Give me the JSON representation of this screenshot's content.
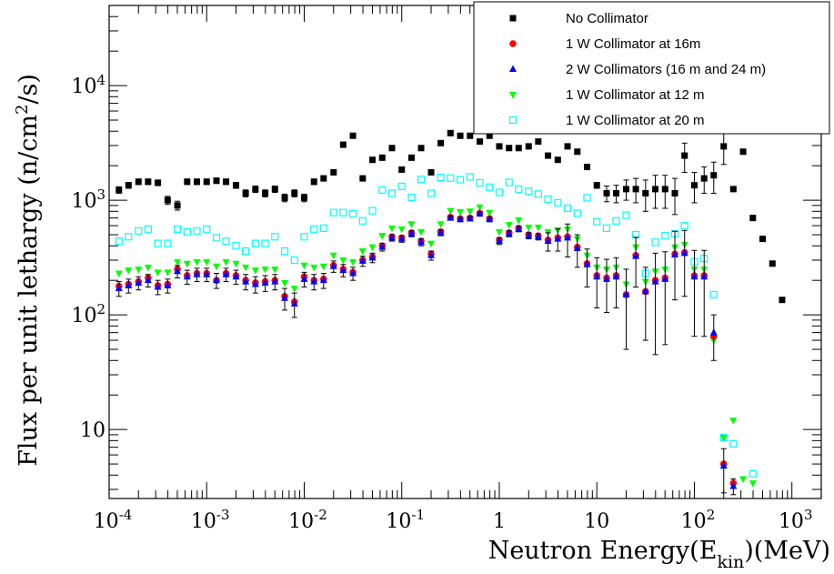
{
  "chart_data": {
    "type": "scatter",
    "xscale": "log",
    "yscale": "log",
    "xlim": [
      0.0001,
      2000
    ],
    "ylim": [
      2.5,
      50000
    ],
    "xlabel": "Neutron Energy(E_kin)(MeV)",
    "ylabel": "Flux per unit lethargy (n/cm^2/s)",
    "x_tick_labels": [
      "10^-4",
      "10^-3",
      "10^-2",
      "10^-1",
      "1",
      "10",
      "10^2",
      "10^3"
    ],
    "y_tick_labels": [
      "10",
      "10^2",
      "10^3",
      "10^4"
    ],
    "legend_position": "top-right",
    "series": [
      {
        "name": "No Collimator",
        "color": "#000000",
        "marker": "square-filled",
        "x": [
          0.000126,
          0.000158,
          0.0002,
          0.000251,
          0.000316,
          0.000398,
          0.000501,
          0.000631,
          0.000794,
          0.001,
          0.00126,
          0.00158,
          0.002,
          0.00251,
          0.00316,
          0.00398,
          0.00501,
          0.00631,
          0.00794,
          0.01,
          0.0126,
          0.0158,
          0.02,
          0.0251,
          0.0316,
          0.0398,
          0.0501,
          0.0631,
          0.0794,
          0.1,
          0.126,
          0.158,
          0.2,
          0.251,
          0.316,
          0.398,
          0.501,
          0.631,
          0.794,
          1,
          1.26,
          1.58,
          2,
          2.51,
          3.16,
          3.98,
          5.01,
          6.31,
          7.94,
          10,
          12.6,
          15.8,
          20,
          25.1,
          31.6,
          39.8,
          50.1,
          63.1,
          79.4,
          100,
          126,
          158,
          200,
          251,
          316,
          398,
          501,
          631,
          794
        ],
        "y": [
          1230,
          1350,
          1450,
          1450,
          1420,
          1000,
          900,
          1450,
          1450,
          1450,
          1480,
          1450,
          1350,
          1150,
          1250,
          1150,
          1250,
          1050,
          1150,
          1050,
          1450,
          1550,
          1750,
          3050,
          3650,
          1550,
          2250,
          2350,
          2850,
          1850,
          2350,
          2850,
          1750,
          3150,
          3850,
          3650,
          3650,
          3250,
          3650,
          2950,
          2850,
          2850,
          2950,
          3250,
          2450,
          2250,
          2950,
          2650,
          1950,
          1350,
          1150,
          1150,
          1250,
          1250,
          1150,
          1250,
          1250,
          1150,
          2450,
          1350,
          1550,
          1650,
          2950,
          1250,
          2650,
          700,
          460,
          280,
          135
        ],
        "err": [
          80,
          80,
          80,
          80,
          80,
          80,
          80,
          80,
          80,
          80,
          80,
          80,
          80,
          80,
          80,
          80,
          80,
          80,
          80,
          80,
          80,
          80,
          80,
          80,
          80,
          80,
          80,
          80,
          80,
          80,
          80,
          80,
          80,
          80,
          80,
          80,
          80,
          80,
          80,
          80,
          80,
          80,
          80,
          80,
          80,
          80,
          80,
          80,
          80,
          80,
          180,
          200,
          250,
          300,
          350,
          400,
          400,
          400,
          700,
          400,
          400,
          500,
          900,
          0,
          0,
          0,
          0,
          0,
          0
        ]
      },
      {
        "name": "1 W Collimator at 16m",
        "color": "#ff0000",
        "marker": "circle-filled",
        "x": [
          0.000126,
          0.000158,
          0.0002,
          0.000251,
          0.000316,
          0.000398,
          0.000501,
          0.000631,
          0.000794,
          0.001,
          0.00126,
          0.00158,
          0.002,
          0.00251,
          0.00316,
          0.00398,
          0.00501,
          0.00631,
          0.00794,
          0.01,
          0.0126,
          0.0158,
          0.02,
          0.0251,
          0.0316,
          0.0398,
          0.0501,
          0.0631,
          0.0794,
          0.1,
          0.126,
          0.158,
          0.2,
          0.251,
          0.316,
          0.398,
          0.501,
          0.631,
          0.794,
          1,
          1.26,
          1.58,
          2,
          2.51,
          3.16,
          3.98,
          5.01,
          6.31,
          7.94,
          10,
          12.6,
          15.8,
          20,
          25.1,
          31.6,
          39.8,
          50.1,
          63.1,
          79.4,
          100,
          126,
          158,
          200,
          251,
          316
        ],
        "y": [
          178,
          185,
          195,
          210,
          180,
          185,
          250,
          220,
          230,
          230,
          200,
          230,
          220,
          200,
          190,
          195,
          200,
          145,
          130,
          215,
          200,
          205,
          270,
          250,
          235,
          300,
          320,
          400,
          480,
          470,
          520,
          440,
          340,
          530,
          710,
          690,
          700,
          770,
          690,
          450,
          520,
          570,
          500,
          490,
          450,
          470,
          480,
          390,
          280,
          220,
          210,
          220,
          150,
          330,
          160,
          200,
          210,
          340,
          350,
          220,
          220,
          65,
          5,
          3.4,
          0
        ]
      },
      {
        "name": "2 W Collimators (16 m and 24 m)",
        "color": "#0000ff",
        "marker": "triangle-up",
        "x": [
          0.000126,
          0.000158,
          0.0002,
          0.000251,
          0.000316,
          0.000398,
          0.000501,
          0.000631,
          0.000794,
          0.001,
          0.00126,
          0.00158,
          0.002,
          0.00251,
          0.00316,
          0.00398,
          0.00501,
          0.00631,
          0.00794,
          0.01,
          0.0126,
          0.0158,
          0.02,
          0.0251,
          0.0316,
          0.0398,
          0.0501,
          0.0631,
          0.0794,
          0.1,
          0.126,
          0.158,
          0.2,
          0.251,
          0.316,
          0.398,
          0.501,
          0.631,
          0.794,
          1,
          1.26,
          1.58,
          2,
          2.51,
          3.16,
          3.98,
          5.01,
          6.31,
          7.94,
          10,
          12.6,
          15.8,
          20,
          25.1,
          31.6,
          39.8,
          50.1,
          63.1,
          79.4,
          100,
          126,
          158,
          200,
          251
        ],
        "y": [
          170,
          180,
          190,
          200,
          175,
          180,
          240,
          215,
          225,
          225,
          200,
          225,
          215,
          195,
          185,
          190,
          195,
          140,
          125,
          205,
          195,
          200,
          265,
          245,
          230,
          295,
          315,
          390,
          470,
          460,
          510,
          430,
          330,
          520,
          700,
          680,
          690,
          760,
          680,
          440,
          510,
          560,
          490,
          480,
          440,
          460,
          470,
          380,
          275,
          215,
          205,
          215,
          150,
          325,
          160,
          195,
          205,
          335,
          345,
          215,
          215,
          70,
          4.8,
          3.2
        ],
        "err": [
          25,
          25,
          25,
          25,
          25,
          25,
          30,
          30,
          30,
          30,
          30,
          30,
          30,
          30,
          30,
          30,
          30,
          30,
          30,
          30,
          30,
          30,
          30,
          30,
          30,
          30,
          30,
          30,
          30,
          30,
          30,
          30,
          30,
          30,
          30,
          30,
          30,
          30,
          30,
          30,
          30,
          30,
          30,
          30,
          80,
          100,
          150,
          120,
          100,
          100,
          100,
          100,
          100,
          150,
          100,
          150,
          150,
          200,
          200,
          150,
          150,
          30,
          2,
          0.5
        ]
      },
      {
        "name": "1 W Collimator at 12 m",
        "color": "#00ff00",
        "marker": "triangle-down",
        "x": [
          0.000126,
          0.000158,
          0.0002,
          0.000251,
          0.000316,
          0.000398,
          0.000501,
          0.000631,
          0.000794,
          0.001,
          0.00126,
          0.00158,
          0.002,
          0.00251,
          0.00316,
          0.00398,
          0.00501,
          0.00631,
          0.00794,
          0.01,
          0.0126,
          0.0158,
          0.02,
          0.0251,
          0.0316,
          0.0398,
          0.0501,
          0.0631,
          0.0794,
          0.1,
          0.126,
          0.158,
          0.2,
          0.251,
          0.316,
          0.398,
          0.501,
          0.631,
          0.794,
          1,
          1.26,
          1.58,
          2,
          2.51,
          3.16,
          3.98,
          5.01,
          6.31,
          7.94,
          10,
          12.6,
          15.8,
          20,
          25.1,
          31.6,
          39.8,
          50.1,
          63.1,
          79.4,
          100,
          126,
          158,
          200,
          251,
          316,
          398
        ],
        "y": [
          230,
          245,
          250,
          260,
          235,
          235,
          290,
          280,
          290,
          290,
          265,
          290,
          280,
          260,
          245,
          250,
          250,
          190,
          170,
          270,
          260,
          265,
          330,
          300,
          290,
          360,
          390,
          490,
          570,
          560,
          620,
          530,
          420,
          620,
          810,
          790,
          800,
          870,
          780,
          530,
          610,
          670,
          580,
          580,
          530,
          550,
          560,
          460,
          330,
          260,
          250,
          260,
          185,
          390,
          195,
          240,
          250,
          390,
          410,
          250,
          250,
          60,
          8.5,
          12,
          3.7,
          3.4
        ]
      },
      {
        "name": "1 W Collimator at 20 m",
        "color": "#00ffff",
        "marker": "square-open",
        "x": [
          0.000126,
          0.000158,
          0.0002,
          0.000251,
          0.000316,
          0.000398,
          0.000501,
          0.000631,
          0.000794,
          0.001,
          0.00126,
          0.00158,
          0.002,
          0.00251,
          0.00316,
          0.00398,
          0.00501,
          0.00631,
          0.00794,
          0.01,
          0.0126,
          0.0158,
          0.02,
          0.0251,
          0.0316,
          0.0398,
          0.0501,
          0.0631,
          0.0794,
          0.1,
          0.126,
          0.158,
          0.2,
          0.251,
          0.316,
          0.398,
          0.501,
          0.631,
          0.794,
          1,
          1.26,
          1.58,
          2,
          2.51,
          3.16,
          3.98,
          5.01,
          6.31,
          7.94,
          10,
          12.6,
          15.8,
          20,
          25.1,
          31.6,
          39.8,
          50.1,
          63.1,
          79.4,
          100,
          126,
          158,
          200,
          251,
          398
        ],
        "y": [
          440,
          480,
          540,
          560,
          420,
          420,
          560,
          530,
          540,
          560,
          470,
          440,
          400,
          360,
          420,
          420,
          480,
          360,
          300,
          480,
          560,
          570,
          780,
          780,
          760,
          660,
          810,
          1230,
          1150,
          1320,
          1060,
          1520,
          1150,
          1580,
          1560,
          1510,
          1600,
          1420,
          1300,
          1170,
          1430,
          1250,
          1200,
          1130,
          1020,
          950,
          850,
          770,
          1050,
          650,
          570,
          660,
          740,
          500,
          230,
          430,
          490,
          510,
          600,
          290,
          310,
          150,
          8.5,
          7.5,
          4.1
        ]
      }
    ]
  }
}
